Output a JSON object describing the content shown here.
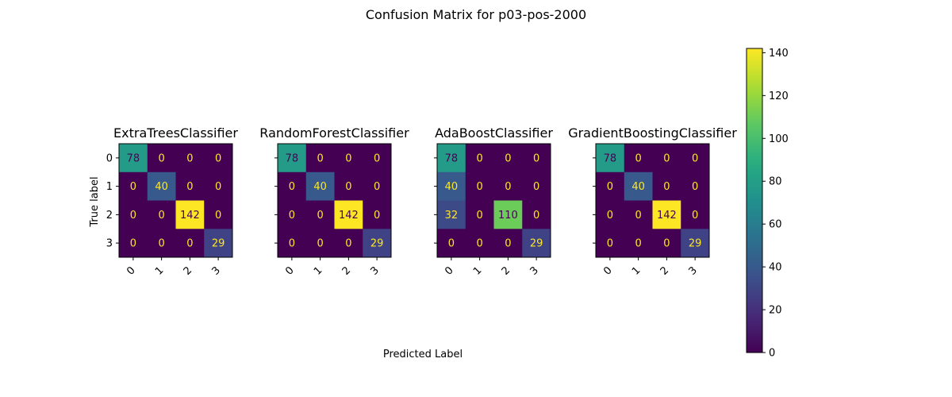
{
  "figure": {
    "title": "Confusion Matrix for p03-pos-2000",
    "xlabel": "Predicted Label",
    "ylabel": "True label"
  },
  "chart_data": [
    {
      "type": "heatmap",
      "title": "ExtraTreesClassifier",
      "x_categories": [
        "0",
        "1",
        "2",
        "3"
      ],
      "y_categories": [
        "0",
        "1",
        "2",
        "3"
      ],
      "values": [
        [
          78,
          0,
          0,
          0
        ],
        [
          0,
          40,
          0,
          0
        ],
        [
          0,
          0,
          142,
          0
        ],
        [
          0,
          0,
          0,
          29
        ]
      ]
    },
    {
      "type": "heatmap",
      "title": "RandomForestClassifier",
      "x_categories": [
        "0",
        "1",
        "2",
        "3"
      ],
      "y_categories": [
        "0",
        "1",
        "2",
        "3"
      ],
      "values": [
        [
          78,
          0,
          0,
          0
        ],
        [
          0,
          40,
          0,
          0
        ],
        [
          0,
          0,
          142,
          0
        ],
        [
          0,
          0,
          0,
          29
        ]
      ]
    },
    {
      "type": "heatmap",
      "title": "AdaBoostClassifier",
      "x_categories": [
        "0",
        "1",
        "2",
        "3"
      ],
      "y_categories": [
        "0",
        "1",
        "2",
        "3"
      ],
      "values": [
        [
          78,
          0,
          0,
          0
        ],
        [
          40,
          0,
          0,
          0
        ],
        [
          32,
          0,
          110,
          0
        ],
        [
          0,
          0,
          0,
          29
        ]
      ]
    },
    {
      "type": "heatmap",
      "title": "GradientBoostingClassifier",
      "x_categories": [
        "0",
        "1",
        "2",
        "3"
      ],
      "y_categories": [
        "0",
        "1",
        "2",
        "3"
      ],
      "values": [
        [
          78,
          0,
          0,
          0
        ],
        [
          0,
          40,
          0,
          0
        ],
        [
          0,
          0,
          142,
          0
        ],
        [
          0,
          0,
          0,
          29
        ]
      ]
    }
  ],
  "colorbar": {
    "colormap": "viridis",
    "range": [
      0,
      142
    ],
    "ticks": [
      "0",
      "20",
      "40",
      "60",
      "80",
      "100",
      "120",
      "140"
    ]
  },
  "colors": {
    "text_on_dark": "#fde725",
    "text_on_light": "#440154",
    "axis": "#000000"
  }
}
